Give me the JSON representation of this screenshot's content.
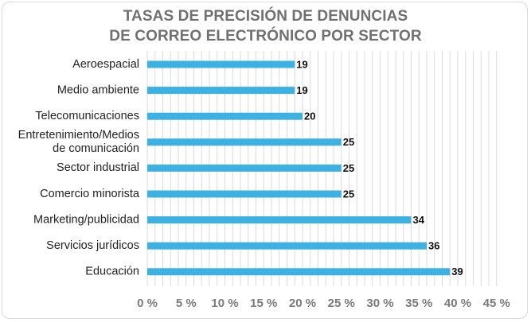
{
  "chart_data": {
    "type": "bar",
    "orientation": "horizontal",
    "title_lines": [
      "TASAS DE PRECISIÓN DE DENUNCIAS",
      "DE CORREO ELECTRÓNICO POR SECTOR"
    ],
    "categories": [
      [
        "Aeroespacial"
      ],
      [
        "Medio ambiente"
      ],
      [
        "Telecomunicaciones"
      ],
      [
        "Entretenimiento/Medios",
        "de comunicación"
      ],
      [
        "Sector industrial"
      ],
      [
        "Comercio minorista"
      ],
      [
        "Marketing/publicidad"
      ],
      [
        "Servicios jurídicos"
      ],
      [
        "Educación"
      ]
    ],
    "values": [
      19,
      19,
      20,
      25,
      25,
      25,
      34,
      36,
      39
    ],
    "xlim": [
      0,
      45
    ],
    "x_ticks": [
      0,
      5,
      10,
      15,
      20,
      25,
      30,
      35,
      40,
      45
    ],
    "x_tick_labels": [
      "0 %",
      "5 %",
      "10 %",
      "15 %",
      "20 %",
      "25 %",
      "30 %",
      "35 %",
      "40 %",
      "45 %"
    ],
    "grid": "vertical",
    "bar_color": "#3eb1e3",
    "grid_color": "#d9d9d9"
  }
}
